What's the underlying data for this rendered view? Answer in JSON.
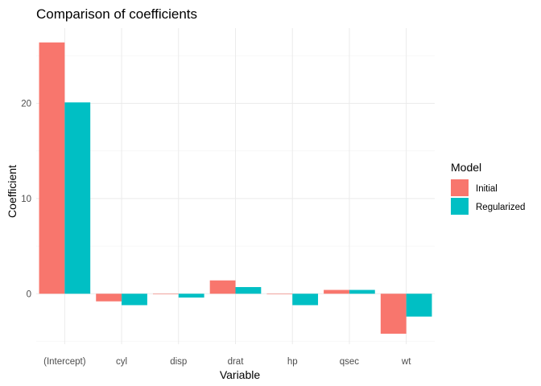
{
  "chart_data": {
    "type": "bar",
    "title": "Comparison of coefficients",
    "xlabel": "Variable",
    "ylabel": "Coefficient",
    "categories": [
      "(Intercept)",
      "cyl",
      "disp",
      "drat",
      "hp",
      "qsec",
      "wt"
    ],
    "series": [
      {
        "name": "Initial",
        "color": "#F8766D",
        "values": [
          26.4,
          -0.8,
          0.0,
          1.4,
          -0.05,
          0.4,
          -4.2
        ]
      },
      {
        "name": "Regularized",
        "color": "#00BFC4",
        "values": [
          20.1,
          -1.2,
          -0.4,
          0.7,
          -1.2,
          0.4,
          -2.4
        ]
      }
    ],
    "ylim": [
      -5.3,
      27.9
    ],
    "yticks": [
      0,
      10,
      20
    ],
    "ytick_labels": [
      "0",
      "10",
      "20"
    ],
    "grid": true,
    "legend": {
      "title": "Model",
      "position": "right"
    }
  }
}
